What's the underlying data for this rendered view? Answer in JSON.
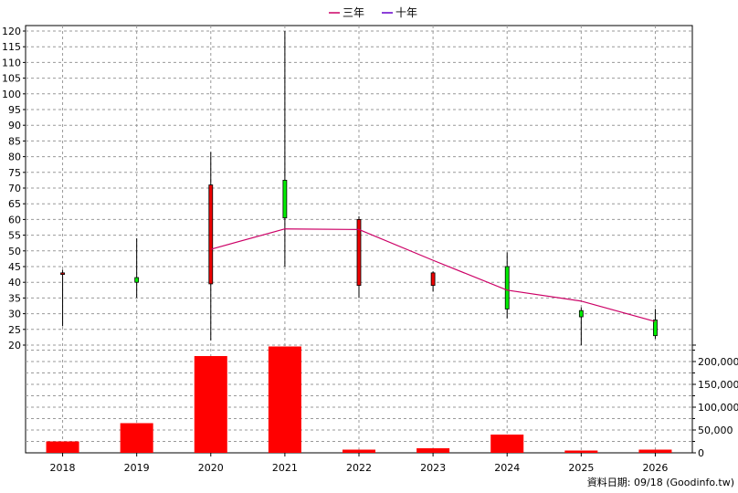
{
  "chart_data": {
    "type": "candlestick",
    "legend": [
      {
        "name": "三年",
        "color": "#cc0066"
      },
      {
        "name": "十年",
        "color": "#6600cc"
      }
    ],
    "categories": [
      "2018",
      "2019",
      "2020",
      "2021",
      "2022",
      "2023",
      "2024",
      "2025",
      "2026"
    ],
    "price_axis": {
      "ylim": [
        20,
        120
      ],
      "ticks": [
        "20",
        "25",
        "30",
        "35",
        "40",
        "45",
        "50",
        "55",
        "60",
        "65",
        "70",
        "75",
        "80",
        "85",
        "90",
        "95",
        "100",
        "105",
        "110",
        "115",
        "120"
      ]
    },
    "volume_axis": {
      "ylim": [
        0,
        240000
      ],
      "ticks": [
        "0",
        "50,000",
        "100,000",
        "150,000",
        "200,000"
      ]
    },
    "candles": [
      {
        "year": "2018",
        "open": 43,
        "high": 44,
        "low": 26,
        "close": 42.5
      },
      {
        "year": "2019",
        "open": 40,
        "high": 54,
        "low": 35,
        "close": 41.5
      },
      {
        "year": "2020",
        "open": 71,
        "high": 81.5,
        "low": 21.5,
        "close": 39.5
      },
      {
        "year": "2021",
        "open": 60.5,
        "high": 120,
        "low": 45,
        "close": 72.5
      },
      {
        "year": "2022",
        "open": 60,
        "high": 61,
        "low": 35,
        "close": 39
      },
      {
        "year": "2023",
        "open": 43,
        "high": 43.5,
        "low": 37,
        "close": 39
      },
      {
        "year": "2024",
        "open": 31.5,
        "high": 49.5,
        "low": 28.5,
        "close": 45
      },
      {
        "year": "2025",
        "open": 29,
        "high": 32,
        "low": 20,
        "close": 31
      },
      {
        "year": "2026",
        "open": 23,
        "high": 31.5,
        "low": 22,
        "close": 28
      }
    ],
    "three_year_avg": [
      null,
      null,
      50.5,
      57,
      56.8,
      47,
      37.5,
      34,
      27.5
    ],
    "volume": [
      25000,
      65000,
      212000,
      233000,
      7000,
      10000,
      40000,
      5000,
      7000
    ],
    "colors": {
      "up": "#00ee00",
      "down": "#ee0000",
      "volume": "#ff0000",
      "grid": "#999999",
      "avg": "#cc0066"
    }
  },
  "footer": {
    "text": "資料日期: 09/18  (Goodinfo.tw)"
  }
}
